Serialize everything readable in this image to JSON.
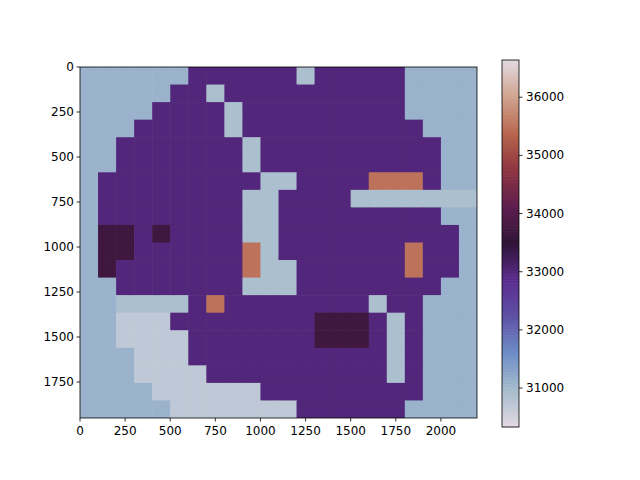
{
  "chart_data": {
    "type": "heatmap",
    "xlim": [
      0,
      2200
    ],
    "ylim": [
      1950,
      0
    ],
    "xticks": [
      0,
      250,
      500,
      750,
      1000,
      1250,
      1500,
      1750,
      2000
    ],
    "yticks": [
      0,
      250,
      500,
      750,
      1000,
      1250,
      1500,
      1750
    ],
    "cells": [
      [
        31100,
        31100,
        31100,
        31100,
        31100,
        31100,
        33000,
        33000,
        33000,
        33000,
        33000,
        33000,
        30900,
        33000,
        33000,
        33000,
        33000,
        33000,
        31100,
        31100,
        31100,
        31100
      ],
      [
        31100,
        31100,
        31100,
        31100,
        31100,
        33000,
        33000,
        30900,
        33000,
        33000,
        33000,
        33000,
        33000,
        33000,
        33000,
        33000,
        33000,
        33000,
        31100,
        31100,
        31100,
        31100
      ],
      [
        31100,
        31100,
        31100,
        31100,
        33000,
        33000,
        33000,
        33000,
        30900,
        33000,
        33000,
        33000,
        33000,
        33000,
        33000,
        33000,
        33000,
        33000,
        31100,
        31100,
        31100,
        31100
      ],
      [
        31100,
        31100,
        31100,
        33000,
        33000,
        33000,
        33000,
        33000,
        30900,
        33000,
        33000,
        33000,
        33000,
        33000,
        33000,
        33000,
        33000,
        33000,
        33000,
        31100,
        31100,
        31100
      ],
      [
        31100,
        31100,
        33000,
        33000,
        33000,
        33000,
        33000,
        33000,
        33000,
        30900,
        33000,
        33000,
        33000,
        33000,
        33000,
        33000,
        33000,
        33000,
        33000,
        33000,
        31100,
        31100
      ],
      [
        31100,
        31100,
        33000,
        33000,
        33000,
        33000,
        33000,
        33000,
        33000,
        30900,
        33000,
        33000,
        33000,
        33000,
        33000,
        33000,
        33000,
        33000,
        33000,
        33000,
        31100,
        31100
      ],
      [
        31100,
        33000,
        33000,
        33000,
        33000,
        33000,
        33000,
        33000,
        33000,
        33000,
        30900,
        30900,
        33000,
        33000,
        33000,
        33000,
        35500,
        35500,
        35500,
        33000,
        31100,
        31100
      ],
      [
        31100,
        33000,
        33000,
        33000,
        33000,
        33000,
        33000,
        33000,
        33000,
        30900,
        30900,
        33000,
        33000,
        33000,
        33000,
        30900,
        30900,
        30900,
        30900,
        30900,
        30900,
        30900
      ],
      [
        31100,
        33000,
        33000,
        33000,
        33000,
        33000,
        33000,
        33000,
        33000,
        30900,
        30900,
        33000,
        33000,
        33000,
        33000,
        33000,
        33000,
        33000,
        33000,
        33000,
        31100,
        31100
      ],
      [
        31100,
        33700,
        33700,
        33000,
        33700,
        33000,
        33000,
        33000,
        33000,
        30900,
        30900,
        33000,
        33000,
        33000,
        33000,
        33000,
        33000,
        33000,
        33000,
        33000,
        33000,
        31100
      ],
      [
        31100,
        33700,
        33700,
        33000,
        33000,
        33000,
        33000,
        33000,
        33000,
        35500,
        30900,
        33000,
        33000,
        33000,
        33000,
        33000,
        33000,
        33000,
        35500,
        33000,
        33000,
        31100
      ],
      [
        31100,
        33700,
        33000,
        33000,
        33000,
        33000,
        33000,
        33000,
        33000,
        35500,
        30900,
        30900,
        33000,
        33000,
        33000,
        33000,
        33000,
        33000,
        35500,
        33000,
        33000,
        31100
      ],
      [
        31100,
        31100,
        33000,
        33000,
        33000,
        33000,
        33000,
        33000,
        33000,
        30900,
        30900,
        30900,
        33000,
        33000,
        33000,
        33000,
        33000,
        33000,
        33000,
        33000,
        31100,
        31100
      ],
      [
        31100,
        31100,
        30900,
        30900,
        30900,
        30900,
        33000,
        35500,
        33000,
        33000,
        33000,
        33000,
        33000,
        33000,
        33000,
        33000,
        30900,
        33000,
        33000,
        31100,
        31100,
        31100
      ],
      [
        31100,
        31100,
        30700,
        30700,
        30700,
        33000,
        33000,
        33000,
        33000,
        33000,
        33000,
        33000,
        33000,
        33700,
        33700,
        33700,
        33000,
        30900,
        33000,
        31100,
        31100,
        31100
      ],
      [
        31100,
        31100,
        30700,
        30700,
        30700,
        30700,
        33000,
        33000,
        33000,
        33000,
        33000,
        33000,
        33000,
        33700,
        33700,
        33700,
        33000,
        30900,
        33000,
        31100,
        31100,
        31100
      ],
      [
        31100,
        31100,
        31100,
        30700,
        30700,
        30700,
        33000,
        33000,
        33000,
        33000,
        33000,
        33000,
        33000,
        33000,
        33000,
        33000,
        33000,
        30900,
        33000,
        31100,
        31100,
        31100
      ],
      [
        31100,
        31100,
        31100,
        30700,
        30700,
        30700,
        30700,
        33000,
        33000,
        33000,
        33000,
        33000,
        33000,
        33000,
        33000,
        33000,
        33000,
        30900,
        33000,
        31100,
        31100,
        31100
      ],
      [
        31100,
        31100,
        31100,
        31100,
        30700,
        30700,
        30700,
        30700,
        30700,
        30700,
        33000,
        33000,
        33000,
        33000,
        33000,
        33000,
        33000,
        33000,
        33000,
        31100,
        31100,
        31100
      ],
      [
        31100,
        31100,
        31100,
        31100,
        31100,
        30700,
        30700,
        30700,
        30700,
        30700,
        30700,
        30700,
        33000,
        33000,
        33000,
        33000,
        33000,
        33000,
        31100,
        31100,
        31100,
        31100
      ]
    ],
    "colorbar": {
      "range": [
        30330,
        36640
      ],
      "ticks": [
        31000,
        32000,
        33000,
        34000,
        35000,
        36000
      ]
    }
  }
}
